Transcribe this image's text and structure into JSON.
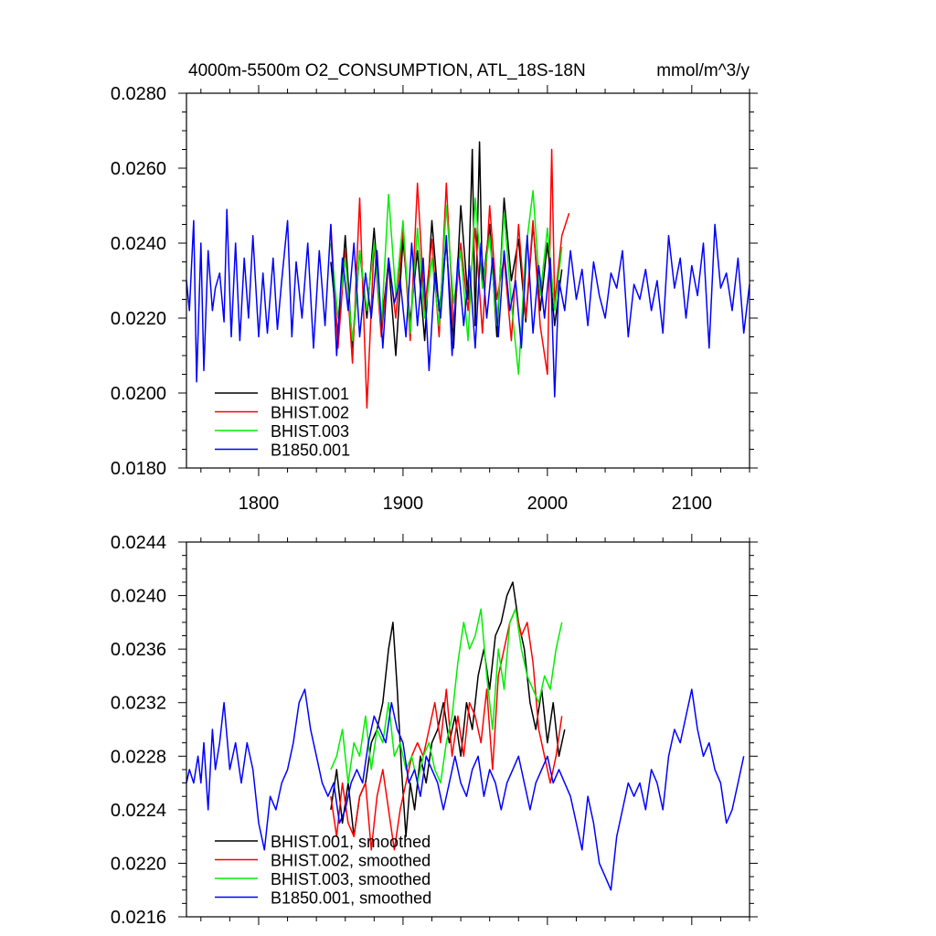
{
  "chart_data": [
    {
      "type": "line",
      "title": "4000m-5500m O2_CONSUMPTION, ATL_18S-18N",
      "units": "mmol/m^3/y",
      "xlim": [
        1750,
        2140
      ],
      "ylim": [
        0.018,
        0.028
      ],
      "yticks": [
        "0.0180",
        "0.0200",
        "0.0220",
        "0.0240",
        "0.0260",
        "0.0280"
      ],
      "xticks": [
        "1800",
        "1900",
        "2000",
        "2100"
      ],
      "grid": false,
      "legend": "bottom-left",
      "series": [
        {
          "name": "BHIST.001",
          "color": "#000000",
          "x": [
            1850,
            1855,
            1860,
            1865,
            1870,
            1875,
            1880,
            1885,
            1890,
            1895,
            1900,
            1905,
            1910,
            1915,
            1920,
            1925,
            1930,
            1935,
            1940,
            1945,
            1948,
            1950,
            1953,
            1955,
            1960,
            1965,
            1970,
            1975,
            1980,
            1985,
            1990,
            1995,
            2000,
            2005,
            2010
          ],
          "y": [
            0.0235,
            0.0215,
            0.0242,
            0.0212,
            0.0238,
            0.022,
            0.0244,
            0.0218,
            0.0235,
            0.021,
            0.0241,
            0.0219,
            0.0238,
            0.0214,
            0.0246,
            0.0222,
            0.024,
            0.0212,
            0.025,
            0.0225,
            0.0265,
            0.0218,
            0.0267,
            0.0228,
            0.0245,
            0.0215,
            0.0252,
            0.023,
            0.0241,
            0.0219,
            0.0245,
            0.0222,
            0.024,
            0.0218,
            0.0233
          ]
        },
        {
          "name": "BHIST.002",
          "color": "#ff0000",
          "x": [
            1850,
            1855,
            1860,
            1865,
            1870,
            1875,
            1880,
            1885,
            1890,
            1895,
            1900,
            1905,
            1910,
            1915,
            1920,
            1925,
            1930,
            1935,
            1940,
            1945,
            1950,
            1955,
            1960,
            1965,
            1970,
            1975,
            1980,
            1985,
            1990,
            1995,
            2000,
            2003,
            2005,
            2010,
            2015
          ],
          "y": [
            0.0245,
            0.0212,
            0.0238,
            0.0208,
            0.0252,
            0.0196,
            0.024,
            0.0215,
            0.0236,
            0.022,
            0.0244,
            0.0214,
            0.0256,
            0.0222,
            0.0241,
            0.0215,
            0.0256,
            0.0218,
            0.024,
            0.0222,
            0.0244,
            0.0216,
            0.025,
            0.0225,
            0.0236,
            0.0214,
            0.0245,
            0.022,
            0.0246,
            0.0218,
            0.0205,
            0.0265,
            0.0224,
            0.0242,
            0.0248
          ]
        },
        {
          "name": "BHIST.003",
          "color": "#00ee00",
          "x": [
            1850,
            1855,
            1860,
            1865,
            1870,
            1875,
            1880,
            1885,
            1890,
            1895,
            1900,
            1905,
            1910,
            1915,
            1920,
            1925,
            1930,
            1935,
            1940,
            1945,
            1950,
            1955,
            1960,
            1965,
            1970,
            1975,
            1980,
            1985,
            1990,
            1995,
            2000,
            2005,
            2010
          ],
          "y": [
            0.024,
            0.022,
            0.0236,
            0.0214,
            0.0238,
            0.0222,
            0.024,
            0.0218,
            0.0253,
            0.0226,
            0.0246,
            0.0216,
            0.0244,
            0.022,
            0.0236,
            0.0218,
            0.025,
            0.0224,
            0.0238,
            0.0214,
            0.0252,
            0.0228,
            0.0242,
            0.0218,
            0.0248,
            0.0224,
            0.0205,
            0.0238,
            0.0254,
            0.0226,
            0.0244,
            0.0222,
            0.0239
          ]
        },
        {
          "name": "B1850.001",
          "color": "#0000ff",
          "x": [
            1750,
            1752,
            1755,
            1757,
            1760,
            1762,
            1765,
            1768,
            1770,
            1773,
            1776,
            1778,
            1781,
            1784,
            1787,
            1790,
            1793,
            1796,
            1800,
            1803,
            1806,
            1810,
            1813,
            1816,
            1820,
            1823,
            1826,
            1830,
            1834,
            1838,
            1842,
            1846,
            1850,
            1854,
            1858,
            1862,
            1866,
            1870,
            1874,
            1878,
            1882,
            1886,
            1890,
            1894,
            1898,
            1902,
            1906,
            1910,
            1914,
            1918,
            1922,
            1926,
            1930,
            1934,
            1938,
            1942,
            1946,
            1950,
            1954,
            1958,
            1962,
            1966,
            1970,
            1974,
            1978,
            1982,
            1986,
            1990,
            1994,
            1998,
            2002,
            2005,
            2008,
            2012,
            2016,
            2020,
            2024,
            2028,
            2032,
            2036,
            2040,
            2044,
            2048,
            2052,
            2056,
            2060,
            2064,
            2068,
            2072,
            2076,
            2080,
            2084,
            2088,
            2092,
            2096,
            2100,
            2104,
            2108,
            2112,
            2116,
            2120,
            2124,
            2128,
            2132,
            2136,
            2140
          ],
          "y": [
            0.023,
            0.0222,
            0.0246,
            0.0203,
            0.024,
            0.0206,
            0.0238,
            0.0222,
            0.0228,
            0.0232,
            0.0219,
            0.0249,
            0.0215,
            0.024,
            0.0214,
            0.0236,
            0.022,
            0.0242,
            0.0215,
            0.0232,
            0.0216,
            0.0236,
            0.0217,
            0.023,
            0.0246,
            0.0215,
            0.0235,
            0.022,
            0.024,
            0.0212,
            0.0238,
            0.0218,
            0.0245,
            0.021,
            0.0236,
            0.0222,
            0.024,
            0.0215,
            0.0232,
            0.022,
            0.0238,
            0.0212,
            0.0236,
            0.0224,
            0.023,
            0.0215,
            0.024,
            0.0218,
            0.0236,
            0.0206,
            0.0232,
            0.022,
            0.0242,
            0.021,
            0.0236,
            0.0218,
            0.0234,
            0.0212,
            0.024,
            0.022,
            0.0236,
            0.0215,
            0.0238,
            0.0222,
            0.023,
            0.0212,
            0.0242,
            0.0216,
            0.0234,
            0.022,
            0.0236,
            0.0199,
            0.023,
            0.0222,
            0.0238,
            0.0225,
            0.0233,
            0.0218,
            0.0235,
            0.0226,
            0.022,
            0.0232,
            0.0228,
            0.0238,
            0.0215,
            0.0229,
            0.0225,
            0.0233,
            0.0222,
            0.023,
            0.0216,
            0.0242,
            0.0228,
            0.0236,
            0.022,
            0.0234,
            0.0226,
            0.024,
            0.0212,
            0.0245,
            0.0228,
            0.0232,
            0.0222,
            0.0236,
            0.0216,
            0.0229
          ]
        }
      ]
    },
    {
      "type": "line",
      "title": "",
      "xlim": [
        1750,
        2140
      ],
      "ylim": [
        0.0216,
        0.0244
      ],
      "yticks": [
        "0.0216",
        "0.0220",
        "0.0224",
        "0.0228",
        "0.0232",
        "0.0236",
        "0.0240",
        "0.0244"
      ],
      "grid": false,
      "legend": "bottom-left",
      "series": [
        {
          "name": "BHIST.001, smoothed",
          "color": "#000000",
          "x": [
            1850,
            1854,
            1858,
            1862,
            1866,
            1870,
            1874,
            1878,
            1882,
            1886,
            1890,
            1893,
            1896,
            1899,
            1902,
            1905,
            1908,
            1912,
            1916,
            1920,
            1924,
            1928,
            1932,
            1936,
            1940,
            1944,
            1948,
            1952,
            1956,
            1960,
            1964,
            1968,
            1972,
            1976,
            1980,
            1984,
            1988,
            1992,
            1996,
            2000,
            2004,
            2008,
            2012
          ],
          "y": [
            0.0224,
            0.0227,
            0.0223,
            0.0226,
            0.0222,
            0.0225,
            0.0226,
            0.0229,
            0.023,
            0.0232,
            0.0236,
            0.0238,
            0.0233,
            0.0227,
            0.0222,
            0.0226,
            0.0224,
            0.0228,
            0.0226,
            0.0229,
            0.023,
            0.0232,
            0.0229,
            0.0231,
            0.0228,
            0.0232,
            0.023,
            0.0234,
            0.0236,
            0.0233,
            0.0237,
            0.0238,
            0.024,
            0.0241,
            0.0238,
            0.0236,
            0.0232,
            0.023,
            0.0233,
            0.0229,
            0.0232,
            0.0228,
            0.023
          ]
        },
        {
          "name": "BHIST.002, smoothed",
          "color": "#ff0000",
          "x": [
            1850,
            1854,
            1858,
            1862,
            1866,
            1870,
            1874,
            1878,
            1882,
            1886,
            1890,
            1894,
            1898,
            1902,
            1906,
            1910,
            1914,
            1918,
            1922,
            1926,
            1930,
            1934,
            1938,
            1942,
            1946,
            1950,
            1954,
            1958,
            1962,
            1966,
            1970,
            1974,
            1978,
            1982,
            1986,
            1990,
            1994,
            1998,
            2002,
            2006,
            2010
          ],
          "y": [
            0.0225,
            0.0222,
            0.0226,
            0.0223,
            0.0222,
            0.0225,
            0.0226,
            0.0221,
            0.0225,
            0.0227,
            0.0224,
            0.0221,
            0.0224,
            0.0226,
            0.0228,
            0.0229,
            0.0228,
            0.023,
            0.0232,
            0.0229,
            0.0233,
            0.0228,
            0.0231,
            0.0228,
            0.0232,
            0.0231,
            0.0229,
            0.0233,
            0.0227,
            0.0234,
            0.0236,
            0.0238,
            0.0239,
            0.0237,
            0.0238,
            0.0235,
            0.023,
            0.0228,
            0.0226,
            0.0228,
            0.0231
          ]
        },
        {
          "name": "BHIST.003, smoothed",
          "color": "#00ee00",
          "x": [
            1850,
            1854,
            1858,
            1862,
            1866,
            1870,
            1874,
            1878,
            1882,
            1886,
            1890,
            1894,
            1898,
            1902,
            1906,
            1910,
            1914,
            1918,
            1922,
            1926,
            1930,
            1934,
            1938,
            1942,
            1946,
            1950,
            1954,
            1958,
            1962,
            1966,
            1970,
            1974,
            1978,
            1982,
            1986,
            1990,
            1994,
            1998,
            2002,
            2006,
            2010
          ],
          "y": [
            0.0227,
            0.0228,
            0.023,
            0.0226,
            0.0229,
            0.0228,
            0.0231,
            0.0227,
            0.023,
            0.0229,
            0.0232,
            0.0228,
            0.0229,
            0.0227,
            0.0228,
            0.0226,
            0.0228,
            0.0229,
            0.0227,
            0.0226,
            0.0229,
            0.0231,
            0.0235,
            0.0238,
            0.0236,
            0.0237,
            0.0239,
            0.0234,
            0.023,
            0.0236,
            0.0233,
            0.0238,
            0.0239,
            0.0236,
            0.0234,
            0.0233,
            0.0232,
            0.0234,
            0.0233,
            0.0236,
            0.0238
          ]
        },
        {
          "name": "B1850.001, smoothed",
          "color": "#0000ff",
          "x": [
            1750,
            1752,
            1755,
            1758,
            1760,
            1762,
            1765,
            1768,
            1770,
            1773,
            1776,
            1780,
            1784,
            1788,
            1792,
            1796,
            1800,
            1804,
            1808,
            1812,
            1816,
            1820,
            1824,
            1828,
            1832,
            1836,
            1840,
            1844,
            1848,
            1852,
            1856,
            1860,
            1864,
            1868,
            1872,
            1876,
            1880,
            1884,
            1888,
            1892,
            1896,
            1900,
            1904,
            1908,
            1912,
            1916,
            1920,
            1924,
            1928,
            1932,
            1936,
            1940,
            1944,
            1948,
            1952,
            1956,
            1960,
            1964,
            1968,
            1972,
            1976,
            1980,
            1984,
            1988,
            1992,
            1996,
            2000,
            2004,
            2008,
            2012,
            2016,
            2020,
            2024,
            2028,
            2032,
            2036,
            2040,
            2044,
            2048,
            2052,
            2056,
            2060,
            2064,
            2068,
            2072,
            2076,
            2080,
            2084,
            2088,
            2092,
            2096,
            2100,
            2104,
            2108,
            2112,
            2116,
            2120,
            2124,
            2128,
            2132,
            2136
          ],
          "y": [
            0.0226,
            0.0227,
            0.0226,
            0.0228,
            0.0226,
            0.0229,
            0.0224,
            0.023,
            0.0227,
            0.0229,
            0.0232,
            0.0227,
            0.0229,
            0.0226,
            0.0229,
            0.0227,
            0.0223,
            0.0221,
            0.0225,
            0.0224,
            0.0226,
            0.0227,
            0.0229,
            0.0232,
            0.0233,
            0.023,
            0.0228,
            0.0226,
            0.0225,
            0.0226,
            0.0223,
            0.0224,
            0.0226,
            0.0227,
            0.0226,
            0.0229,
            0.0231,
            0.023,
            0.0229,
            0.0232,
            0.023,
            0.0229,
            0.0226,
            0.0227,
            0.0225,
            0.0228,
            0.0227,
            0.0226,
            0.0224,
            0.0226,
            0.0228,
            0.0226,
            0.0225,
            0.0227,
            0.0228,
            0.0225,
            0.0227,
            0.0226,
            0.0224,
            0.0226,
            0.0227,
            0.0228,
            0.0226,
            0.0224,
            0.0226,
            0.0227,
            0.0228,
            0.0226,
            0.0227,
            0.0226,
            0.0225,
            0.0223,
            0.0221,
            0.0225,
            0.0223,
            0.022,
            0.0219,
            0.0218,
            0.0222,
            0.0224,
            0.0226,
            0.0225,
            0.0226,
            0.0224,
            0.0227,
            0.0226,
            0.0224,
            0.0228,
            0.023,
            0.0229,
            0.0231,
            0.0233,
            0.023,
            0.0228,
            0.0229,
            0.0227,
            0.0226,
            0.0223,
            0.0224,
            0.0226,
            0.0228
          ]
        }
      ]
    }
  ]
}
